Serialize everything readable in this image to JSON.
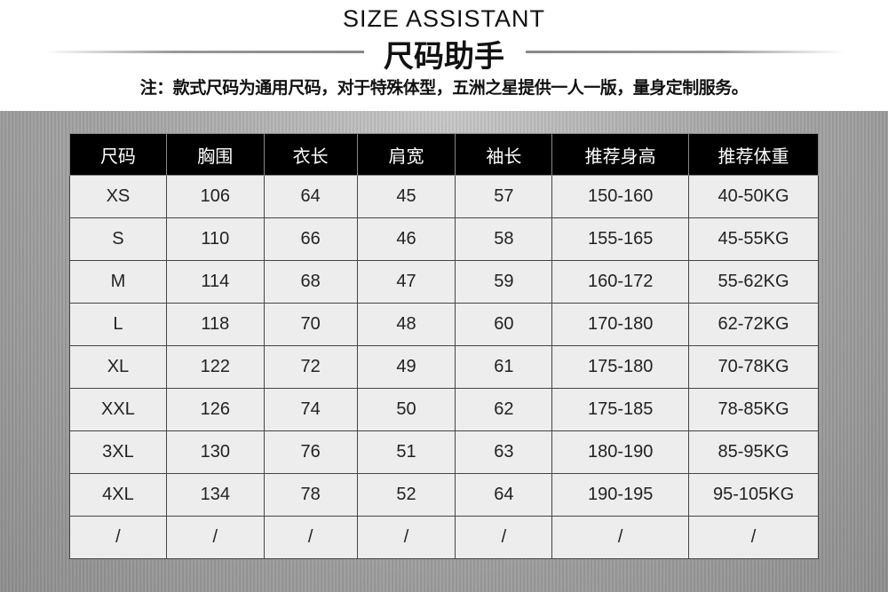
{
  "header": {
    "title_en": "SIZE ASSISTANT",
    "title_cn": "尺码助手",
    "note": "注：款式尺码为通用尺码，对于特殊体型，五洲之星提供一人一版，量身定制服务。"
  },
  "table": {
    "columns": [
      "尺码",
      "胸围",
      "衣长",
      "肩宽",
      "袖长",
      "推荐身高",
      "推荐体重"
    ],
    "rows": [
      [
        "XS",
        "106",
        "64",
        "45",
        "57",
        "150-160",
        "40-50KG"
      ],
      [
        "S",
        "110",
        "66",
        "46",
        "58",
        "155-165",
        "45-55KG"
      ],
      [
        "M",
        "114",
        "68",
        "47",
        "59",
        "160-172",
        "55-62KG"
      ],
      [
        "L",
        "118",
        "70",
        "48",
        "60",
        "170-180",
        "62-72KG"
      ],
      [
        "XL",
        "122",
        "72",
        "49",
        "61",
        "175-180",
        "70-78KG"
      ],
      [
        "XXL",
        "126",
        "74",
        "50",
        "62",
        "175-185",
        "78-85KG"
      ],
      [
        "3XL",
        "130",
        "76",
        "51",
        "63",
        "180-190",
        "85-95KG"
      ],
      [
        "4XL",
        "134",
        "78",
        "52",
        "64",
        "190-195",
        "95-105KG"
      ],
      [
        "/",
        "/",
        "/",
        "/",
        "/",
        "/",
        "/"
      ]
    ]
  }
}
